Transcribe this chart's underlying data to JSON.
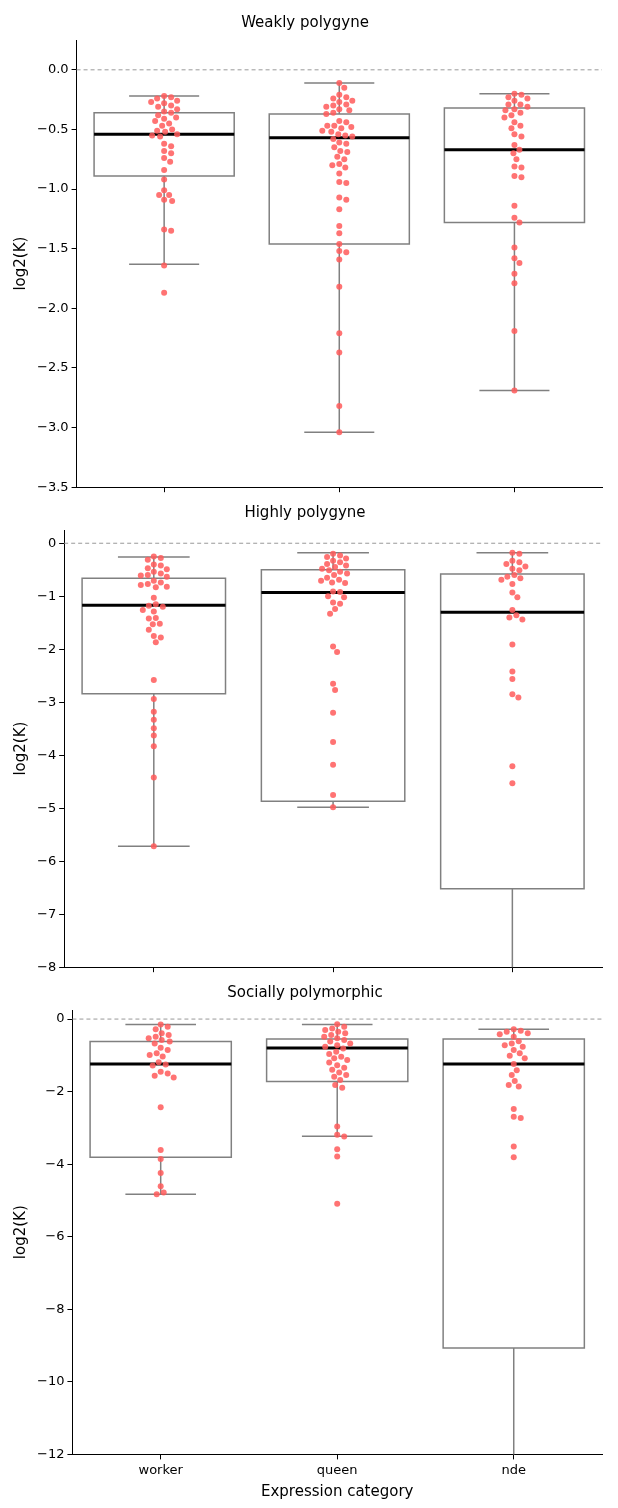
{
  "chart_data": [
    {
      "type": "box",
      "title": "Weakly polygyne",
      "ylabel": "log2(K)",
      "categories": [
        "worker",
        "queen",
        "nde"
      ],
      "tick_labels": "y",
      "grid": false,
      "legend": false,
      "ylim": [
        -3.5,
        0.25
      ],
      "yticks": [
        {
          "value": -3.5,
          "label": "−3.5"
        },
        {
          "value": -3,
          "label": "−3.0"
        },
        {
          "value": -2.5,
          "label": "−2.5"
        },
        {
          "value": -2,
          "label": "−2.0"
        },
        {
          "value": -1.5,
          "label": "−1.5"
        },
        {
          "value": -1,
          "label": "−1.0"
        },
        {
          "value": -0.5,
          "label": "−0.5"
        },
        {
          "value": 0,
          "label": "0.0"
        }
      ],
      "ref_lines": [
        {
          "axis": "y",
          "value": 0,
          "color": "#999999",
          "line_style": "dashed"
        }
      ],
      "boxes": [
        {
          "low": -1.63,
          "q1": -0.89,
          "median": -0.54,
          "q3": -0.36,
          "high": -0.22
        },
        {
          "low": -3.04,
          "q1": -1.46,
          "median": -0.57,
          "q3": -0.37,
          "high": -0.11
        },
        {
          "low": -2.69,
          "q1": -1.28,
          "median": -0.67,
          "q3": -0.32,
          "high": -0.2
        }
      ],
      "series": [
        {
          "type": "scatter",
          "color": "#ff5a5a",
          "marker": "circle",
          "x": [
            "worker",
            "worker",
            "worker",
            "worker",
            "worker",
            "worker",
            "worker",
            "worker",
            "worker",
            "worker",
            "worker",
            "worker",
            "worker",
            "worker",
            "worker",
            "worker",
            "worker",
            "worker",
            "worker",
            "worker",
            "worker",
            "worker",
            "worker",
            "worker",
            "worker",
            "worker",
            "worker",
            "worker",
            "worker",
            "worker",
            "worker",
            "worker",
            "worker",
            "worker",
            "worker",
            "worker",
            "worker",
            "worker",
            "worker",
            "worker"
          ],
          "values": [
            -0.22,
            -0.23,
            -0.24,
            -0.26,
            -0.27,
            -0.28,
            -0.3,
            -0.31,
            -0.33,
            -0.35,
            -0.36,
            -0.38,
            -0.4,
            -0.41,
            -0.43,
            -0.45,
            -0.47,
            -0.5,
            -0.51,
            -0.52,
            -0.54,
            -0.55,
            -0.56,
            -0.62,
            -0.64,
            -0.68,
            -0.7,
            -0.74,
            -0.77,
            -0.84,
            -0.92,
            -1.01,
            -1.05,
            -1.05,
            -1.09,
            -1.1,
            -1.34,
            -1.35,
            -1.64,
            -1.87
          ]
        },
        {
          "type": "scatter",
          "color": "#ff5a5a",
          "marker": "circle",
          "x": [
            "queen",
            "queen",
            "queen",
            "queen",
            "queen",
            "queen",
            "queen",
            "queen",
            "queen",
            "queen",
            "queen",
            "queen",
            "queen",
            "queen",
            "queen",
            "queen",
            "queen",
            "queen",
            "queen",
            "queen",
            "queen",
            "queen",
            "queen",
            "queen",
            "queen",
            "queen",
            "queen",
            "queen",
            "queen",
            "queen",
            "queen",
            "queen",
            "queen",
            "queen",
            "queen",
            "queen",
            "queen",
            "queen",
            "queen",
            "queen",
            "queen",
            "queen",
            "queen",
            "queen",
            "queen",
            "queen",
            "queen",
            "queen",
            "queen",
            "queen",
            "queen",
            "queen",
            "queen"
          ],
          "values": [
            -0.11,
            -0.15,
            -0.21,
            -0.23,
            -0.24,
            -0.26,
            -0.27,
            -0.29,
            -0.3,
            -0.31,
            -0.33,
            -0.34,
            -0.36,
            -0.37,
            -0.43,
            -0.44,
            -0.47,
            -0.47,
            -0.48,
            -0.49,
            -0.51,
            -0.52,
            -0.54,
            -0.55,
            -0.56,
            -0.58,
            -0.61,
            -0.62,
            -0.65,
            -0.68,
            -0.69,
            -0.73,
            -0.75,
            -0.79,
            -0.8,
            -0.82,
            -0.87,
            -0.94,
            -0.95,
            -1.07,
            -1.09,
            -1.17,
            -1.31,
            -1.37,
            -1.46,
            -1.52,
            -1.53,
            -1.59,
            -1.82,
            -2.21,
            -2.37,
            -2.82,
            -3.04
          ]
        },
        {
          "type": "scatter",
          "color": "#ff5a5a",
          "marker": "circle",
          "x": [
            "nde",
            "nde",
            "nde",
            "nde",
            "nde",
            "nde",
            "nde",
            "nde",
            "nde",
            "nde",
            "nde",
            "nde",
            "nde",
            "nde",
            "nde",
            "nde",
            "nde",
            "nde",
            "nde",
            "nde",
            "nde",
            "nde",
            "nde",
            "nde",
            "nde",
            "nde",
            "nde",
            "nde",
            "nde",
            "nde",
            "nde",
            "nde",
            "nde",
            "nde",
            "nde",
            "nde"
          ],
          "values": [
            -0.2,
            -0.21,
            -0.23,
            -0.24,
            -0.26,
            -0.29,
            -0.29,
            -0.31,
            -0.33,
            -0.34,
            -0.36,
            -0.38,
            -0.4,
            -0.44,
            -0.47,
            -0.49,
            -0.54,
            -0.56,
            -0.63,
            -0.67,
            -0.7,
            -0.75,
            -0.81,
            -0.82,
            -0.89,
            -0.9,
            -1.14,
            -1.24,
            -1.28,
            -1.49,
            -1.58,
            -1.62,
            -1.71,
            -1.79,
            -2.19,
            -2.69
          ]
        }
      ]
    },
    {
      "type": "box",
      "title": "Highly polygyne",
      "ylabel": "log2(K)",
      "categories": [
        "worker",
        "queen",
        "nde"
      ],
      "tick_labels": "y",
      "grid": false,
      "legend": false,
      "ylim": [
        -8,
        0.25
      ],
      "yticks": [
        {
          "value": -8,
          "label": "−8"
        },
        {
          "value": -7,
          "label": "−7"
        },
        {
          "value": -6,
          "label": "−6"
        },
        {
          "value": -5,
          "label": "−5"
        },
        {
          "value": -4,
          "label": "−4"
        },
        {
          "value": -3,
          "label": "−3"
        },
        {
          "value": -2,
          "label": "−2"
        },
        {
          "value": -1,
          "label": "−1"
        },
        {
          "value": 0,
          "label": "0"
        }
      ],
      "ref_lines": [
        {
          "axis": "y",
          "value": 0,
          "color": "#999999",
          "line_style": "dashed"
        }
      ],
      "boxes": [
        {
          "low": -5.72,
          "q1": -2.84,
          "median": -1.17,
          "q3": -0.66,
          "high": -0.26
        },
        {
          "low": -4.98,
          "q1": -4.87,
          "median": -0.93,
          "q3": -0.5,
          "high": -0.18
        },
        {
          "low": -8,
          "q1": -6.52,
          "median": -1.3,
          "q3": -0.58,
          "high": -0.18
        }
      ],
      "series": [
        {
          "type": "scatter",
          "color": "#ff5a5a",
          "marker": "circle",
          "x": [
            "worker",
            "worker",
            "worker",
            "worker",
            "worker",
            "worker",
            "worker",
            "worker",
            "worker",
            "worker",
            "worker",
            "worker",
            "worker",
            "worker",
            "worker",
            "worker",
            "worker",
            "worker",
            "worker",
            "worker",
            "worker",
            "worker",
            "worker",
            "worker",
            "worker",
            "worker",
            "worker",
            "worker",
            "worker",
            "worker",
            "worker",
            "worker",
            "worker",
            "worker",
            "worker",
            "worker",
            "worker",
            "worker",
            "worker",
            "worker",
            "worker"
          ],
          "values": [
            -0.25,
            -0.28,
            -0.31,
            -0.4,
            -0.42,
            -0.47,
            -0.49,
            -0.54,
            -0.57,
            -0.6,
            -0.61,
            -0.63,
            -0.71,
            -0.74,
            -0.77,
            -0.79,
            -0.82,
            -0.83,
            -1.03,
            -1.15,
            -1.18,
            -1.2,
            -1.26,
            -1.29,
            -1.41,
            -1.42,
            -1.52,
            -1.53,
            -1.63,
            -1.75,
            -1.78,
            -1.87,
            -2.58,
            -2.94,
            -3.18,
            -3.33,
            -3.49,
            -3.63,
            -3.83,
            -4.42,
            -5.72
          ]
        },
        {
          "type": "scatter",
          "color": "#ff5a5a",
          "marker": "circle",
          "x": [
            "queen",
            "queen",
            "queen",
            "queen",
            "queen",
            "queen",
            "queen",
            "queen",
            "queen",
            "queen",
            "queen",
            "queen",
            "queen",
            "queen",
            "queen",
            "queen",
            "queen",
            "queen",
            "queen",
            "queen",
            "queen",
            "queen",
            "queen",
            "queen",
            "queen",
            "queen",
            "queen",
            "queen",
            "queen",
            "queen",
            "queen",
            "queen",
            "queen",
            "queen",
            "queen",
            "queen"
          ],
          "values": [
            -0.2,
            -0.23,
            -0.26,
            -0.29,
            -0.33,
            -0.36,
            -0.39,
            -0.42,
            -0.45,
            -0.48,
            -0.51,
            -0.54,
            -0.57,
            -0.6,
            -0.65,
            -0.69,
            -0.71,
            -0.74,
            -0.75,
            -0.91,
            -0.92,
            -1.0,
            -1.02,
            -1.12,
            -1.14,
            -1.24,
            -1.33,
            -1.95,
            -2.05,
            -2.65,
            -2.77,
            -3.2,
            -3.75,
            -4.18,
            -4.75,
            -4.98
          ]
        },
        {
          "type": "scatter",
          "color": "#ff5a5a",
          "marker": "circle",
          "x": [
            "nde",
            "nde",
            "nde",
            "nde",
            "nde",
            "nde",
            "nde",
            "nde",
            "nde",
            "nde",
            "nde",
            "nde",
            "nde",
            "nde",
            "nde",
            "nde",
            "nde",
            "nde",
            "nde",
            "nde",
            "nde",
            "nde",
            "nde",
            "nde",
            "nde",
            "nde"
          ],
          "values": [
            -0.18,
            -0.2,
            -0.33,
            -0.36,
            -0.39,
            -0.44,
            -0.48,
            -0.51,
            -0.6,
            -0.63,
            -0.66,
            -0.69,
            -0.77,
            -0.93,
            -1.02,
            -1.26,
            -1.36,
            -1.4,
            -1.44,
            -1.91,
            -2.42,
            -2.56,
            -2.85,
            -2.91,
            -4.21,
            -4.53
          ]
        }
      ]
    },
    {
      "type": "box",
      "title": "Socially polymorphic",
      "ylabel": "log2(K)",
      "xlabel": "Expression category",
      "categories": [
        "worker",
        "queen",
        "nde"
      ],
      "grid": false,
      "legend": false,
      "ylim": [
        -12,
        0.25
      ],
      "yticks": [
        {
          "value": -12,
          "label": "−12"
        },
        {
          "value": -10,
          "label": "−10"
        },
        {
          "value": -8,
          "label": "−8"
        },
        {
          "value": -6,
          "label": "−6"
        },
        {
          "value": -4,
          "label": "−4"
        },
        {
          "value": -2,
          "label": "−2"
        },
        {
          "value": 0,
          "label": "0"
        }
      ],
      "ref_lines": [
        {
          "axis": "y",
          "value": 0,
          "color": "#999999",
          "line_style": "dashed"
        }
      ],
      "boxes": [
        {
          "low": -4.83,
          "q1": -3.81,
          "median": -1.24,
          "q3": -0.62,
          "high": -0.15
        },
        {
          "low": -3.23,
          "q1": -1.72,
          "median": -0.8,
          "q3": -0.55,
          "high": -0.15
        },
        {
          "low": -12,
          "q1": -9.07,
          "median": -1.24,
          "q3": -0.55,
          "high": -0.28
        }
      ],
      "series": [
        {
          "type": "scatter",
          "color": "#ff5a5a",
          "marker": "circle",
          "x": [
            "worker",
            "worker",
            "worker",
            "worker",
            "worker",
            "worker",
            "worker",
            "worker",
            "worker",
            "worker",
            "worker",
            "worker",
            "worker",
            "worker",
            "worker",
            "worker",
            "worker",
            "worker",
            "worker",
            "worker",
            "worker",
            "worker",
            "worker",
            "worker",
            "worker",
            "worker",
            "worker",
            "worker",
            "worker"
          ],
          "values": [
            -0.15,
            -0.21,
            -0.28,
            -0.39,
            -0.44,
            -0.49,
            -0.53,
            -0.58,
            -0.62,
            -0.67,
            -0.79,
            -0.85,
            -0.94,
            -0.99,
            -1.03,
            -1.19,
            -1.25,
            -1.28,
            -1.45,
            -1.5,
            -1.56,
            -1.61,
            -2.43,
            -3.61,
            -3.86,
            -4.24,
            -4.61,
            -4.78,
            -4.83
          ]
        },
        {
          "type": "scatter",
          "color": "#ff5a5a",
          "marker": "circle",
          "x": [
            "queen",
            "queen",
            "queen",
            "queen",
            "queen",
            "queen",
            "queen",
            "queen",
            "queen",
            "queen",
            "queen",
            "queen",
            "queen",
            "queen",
            "queen",
            "queen",
            "queen",
            "queen",
            "queen",
            "queen",
            "queen",
            "queen",
            "queen",
            "queen",
            "queen",
            "queen",
            "queen",
            "queen",
            "queen",
            "queen",
            "queen",
            "queen",
            "queen",
            "queen",
            "queen",
            "queen"
          ],
          "values": [
            -0.14,
            -0.21,
            -0.26,
            -0.3,
            -0.35,
            -0.39,
            -0.44,
            -0.49,
            -0.53,
            -0.58,
            -0.62,
            -0.67,
            -0.72,
            -0.76,
            -0.81,
            -0.9,
            -0.96,
            -1.04,
            -1.08,
            -1.13,
            -1.2,
            -1.27,
            -1.34,
            -1.4,
            -1.47,
            -1.54,
            -1.59,
            -1.68,
            -1.82,
            -1.89,
            -2.96,
            -3.19,
            -3.24,
            -3.59,
            -3.79,
            -5.09
          ]
        },
        {
          "type": "scatter",
          "color": "#ff5a5a",
          "marker": "circle",
          "x": [
            "nde",
            "nde",
            "nde",
            "nde",
            "nde",
            "nde",
            "nde",
            "nde",
            "nde",
            "nde",
            "nde",
            "nde",
            "nde",
            "nde",
            "nde",
            "nde",
            "nde",
            "nde",
            "nde",
            "nde",
            "nde",
            "nde",
            "nde",
            "nde",
            "nde"
          ],
          "values": [
            -0.28,
            -0.32,
            -0.35,
            -0.39,
            -0.42,
            -0.49,
            -0.61,
            -0.67,
            -0.72,
            -0.76,
            -0.85,
            -0.94,
            -1.01,
            -1.08,
            -1.24,
            -1.41,
            -1.54,
            -1.71,
            -1.82,
            -1.86,
            -2.48,
            -2.69,
            -2.73,
            -3.51,
            -3.81
          ]
        }
      ]
    }
  ]
}
